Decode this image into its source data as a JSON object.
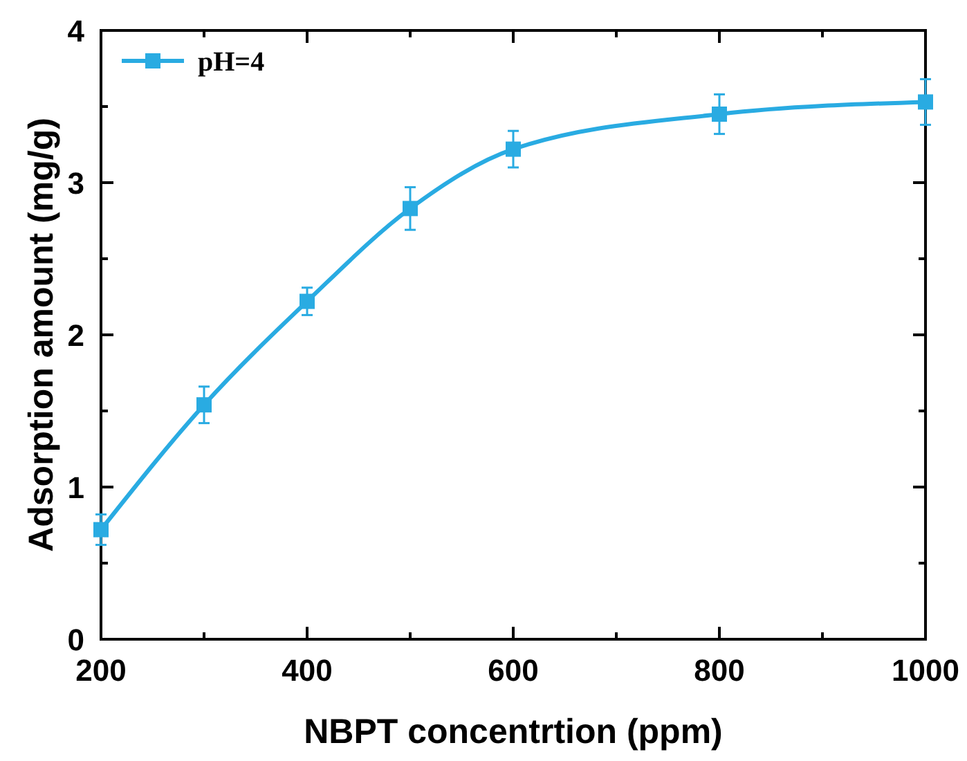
{
  "chart_data": {
    "type": "line",
    "xlabel": "NBPT concentrtion (ppm)",
    "ylabel": "Adsorption amount (mg/g)",
    "x": [
      200,
      300,
      400,
      500,
      600,
      800,
      1000
    ],
    "series": [
      {
        "name": "pH=4",
        "color": "#29abe2",
        "values": [
          0.72,
          1.54,
          2.22,
          2.83,
          3.22,
          3.45,
          3.53
        ],
        "errors": [
          0.1,
          0.12,
          0.09,
          0.14,
          0.12,
          0.13,
          0.15
        ]
      }
    ],
    "xlim": [
      200,
      1000
    ],
    "xticks": [
      200,
      {
        "value": 300,
        "label": null
      },
      400,
      {
        "value": 500,
        "label": null
      },
      600,
      {
        "value": 700,
        "label": null
      },
      800,
      {
        "value": 900,
        "label": null
      },
      1000
    ],
    "ylim": [
      0,
      4
    ],
    "yticks": [
      0,
      {
        "value": 0.5,
        "label": null
      },
      1,
      {
        "value": 1.5,
        "label": null
      },
      2,
      {
        "value": 2.5,
        "label": null
      },
      3,
      {
        "value": 3.5,
        "label": null
      },
      4
    ],
    "marker": "square",
    "line_style": "solid",
    "legend": "top left",
    "grid": false
  }
}
